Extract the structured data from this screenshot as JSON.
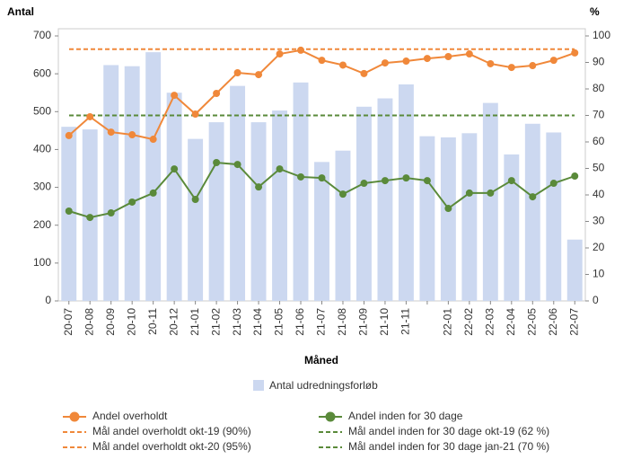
{
  "chart_data": {
    "type": "bar-line",
    "y_label": "Antal",
    "y2_label": "%",
    "x_label": "Måned",
    "categories": [
      "20-07",
      "20-08",
      "20-09",
      "20-10",
      "20-11",
      "20-12",
      "21-01",
      "21-02",
      "21-03",
      "21-04",
      "21-05",
      "21-06",
      "21-07",
      "21-08",
      "21-09",
      "21-10",
      "21-11",
      null,
      "22-01",
      "22-02",
      "22-03",
      "22-04",
      "22-05",
      "22-06",
      "22-07"
    ],
    "ylim": [
      0,
      700
    ],
    "yticks": [
      0,
      100,
      200,
      300,
      400,
      500,
      600,
      700
    ],
    "y2lim": [
      0,
      100
    ],
    "y2ticks": [
      0,
      10,
      20,
      30,
      40,
      50,
      60,
      70,
      80,
      90,
      100
    ],
    "series": [
      {
        "name": "Antal udredningsforløb",
        "kind": "bar",
        "color": "#ccd8f0",
        "values": [
          460,
          453,
          623,
          620,
          657,
          550,
          428,
          472,
          568,
          472,
          503,
          577,
          367,
          397,
          513,
          535,
          572,
          435,
          432,
          443,
          523,
          387,
          468,
          445,
          162
        ]
      },
      {
        "name": "Andel overholdt",
        "kind": "line",
        "axis": "y2",
        "color": "#f0883a",
        "values": [
          62.4,
          69.5,
          63.7,
          62.7,
          61,
          77.6,
          70.5,
          78.3,
          86.1,
          85.4,
          93.2,
          94.6,
          90.8,
          89,
          85.8,
          89.8,
          90.5,
          91.5,
          92.2,
          93.2,
          89.5,
          88.1,
          88.8,
          90.8,
          93.6
        ]
      },
      {
        "name": "Andel inden for 30 dage",
        "kind": "line",
        "axis": "y2",
        "color": "#5a8a3a",
        "values": [
          33.9,
          31.5,
          33.2,
          37.3,
          40.7,
          49.8,
          38.3,
          52.2,
          51.5,
          43,
          49.8,
          46.8,
          46.4,
          40.3,
          44.4,
          45.4,
          46.4,
          45.4,
          34.9,
          40.7,
          40.7,
          45.4,
          39.3,
          44.4,
          47.1
        ]
      }
    ],
    "targets": [
      {
        "name": "Mål andel overholdt okt-19 (90%)",
        "color": "#f0883a"
      },
      {
        "name": "Mål andel overholdt okt-20 (95%)",
        "color": "#f0883a",
        "value": 95
      },
      {
        "name": "Mål andel inden for 30 dage okt-19 (62 %)",
        "color": "#5a8a3a"
      },
      {
        "name": "Mål andel inden for 30 dage jan-21 (70 %)",
        "color": "#5a8a3a",
        "value": 70
      }
    ]
  }
}
